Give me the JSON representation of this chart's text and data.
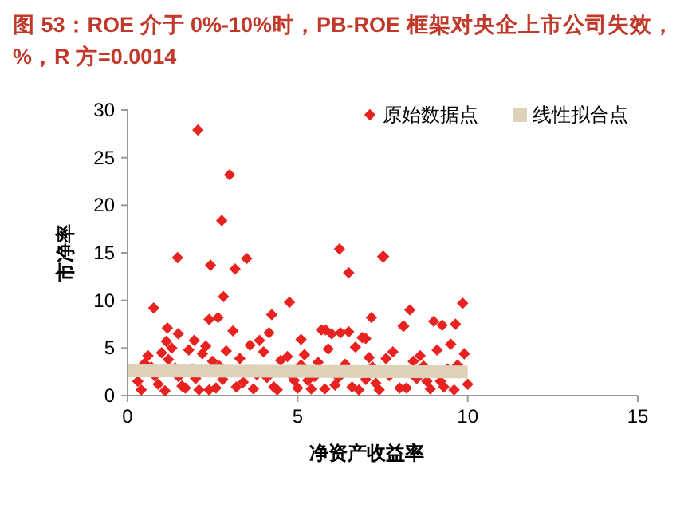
{
  "chart_data": {
    "type": "scatter",
    "title": "图 53：ROE 介于 0%-10%时，PB-ROE 框架对央企上市公司失效，%，R 方=0.0014",
    "xlabel": "净资产收益率",
    "ylabel": "市净率",
    "xlim": [
      0,
      15
    ],
    "xticks": [
      0,
      5,
      10,
      15
    ],
    "ylim": [
      0,
      30
    ],
    "yticks": [
      0,
      5,
      10,
      15,
      20,
      25,
      30
    ],
    "legend": "top",
    "series": [
      {
        "name": "原始数据点",
        "color": "#e8231f",
        "marker": "diamond",
        "x": [
          2.07,
          3.0,
          2.77,
          1.47,
          2.44,
          3.16,
          3.5,
          2.82,
          0.77,
          4.76,
          4.24,
          2.4,
          2.66,
          1.17,
          3.1,
          1.49,
          5.1,
          1.14,
          4.16,
          1.96,
          3.88,
          5.82,
          6.26,
          7.0,
          7.17,
          7.53,
          8.12,
          8.3,
          6.23,
          7.5,
          6.5,
          9.85,
          9.0,
          9.25,
          9.64,
          8.1,
          5.7,
          6.0,
          6.9,
          6.5,
          0.3,
          0.5,
          0.6,
          0.9,
          1.0,
          1.2,
          1.3,
          1.6,
          1.8,
          1.9,
          2.1,
          2.2,
          2.3,
          2.5,
          2.6,
          2.9,
          3.3,
          3.4,
          3.6,
          3.8,
          4.0,
          4.3,
          4.5,
          4.7,
          4.9,
          5.2,
          5.4,
          5.6,
          5.9,
          6.1,
          6.4,
          6.7,
          6.8,
          7.1,
          7.3,
          7.6,
          7.8,
          8.0,
          8.4,
          8.6,
          8.8,
          9.1,
          9.3,
          9.5,
          9.7,
          9.9,
          0.4,
          0.8,
          1.1,
          1.5,
          1.7,
          2.0,
          2.4,
          2.8,
          3.2,
          3.7,
          4.1,
          4.4,
          4.8,
          5.0,
          5.3,
          5.5,
          5.8,
          6.2,
          6.6,
          7.0,
          7.4,
          7.7,
          8.2,
          8.5,
          8.9,
          9.2,
          9.6,
          10.0,
          0.7,
          1.4,
          2.7,
          5.1,
          7.2,
          8.7,
          9.4
        ],
        "values": [
          27.9,
          23.2,
          18.4,
          14.5,
          13.7,
          13.3,
          14.4,
          10.4,
          9.2,
          9.8,
          8.5,
          8.0,
          8.2,
          7.1,
          6.8,
          6.5,
          5.9,
          5.7,
          6.6,
          5.8,
          5.8,
          6.9,
          6.6,
          6.0,
          8.2,
          14.6,
          7.3,
          9.0,
          15.4,
          14.6,
          12.9,
          9.7,
          7.8,
          7.4,
          7.5,
          7.3,
          6.9,
          6.5,
          6.1,
          6.7,
          1.5,
          3.4,
          4.2,
          1.2,
          4.5,
          3.8,
          5.0,
          1.0,
          4.8,
          2.8,
          0.6,
          4.4,
          5.2,
          3.6,
          0.8,
          4.7,
          3.9,
          1.4,
          5.3,
          2.2,
          4.6,
          0.9,
          3.7,
          4.1,
          1.6,
          4.3,
          0.7,
          3.5,
          4.9,
          1.1,
          3.3,
          5.1,
          0.6,
          4.0,
          1.3,
          3.9,
          4.6,
          0.8,
          3.6,
          4.2,
          1.5,
          4.8,
          0.9,
          5.4,
          3.2,
          4.4,
          0.6,
          2.1,
          0.5,
          2.0,
          0.8,
          1.8,
          0.6,
          1.7,
          0.9,
          0.7,
          1.9,
          0.6,
          2.2,
          0.8,
          1.6,
          2.0,
          0.7,
          1.9,
          0.9,
          1.7,
          0.6,
          2.1,
          0.8,
          1.8,
          0.7,
          1.5,
          0.6,
          1.2,
          3.0,
          2.9,
          3.1,
          3.2,
          3.0,
          3.1,
          2.8
        ]
      },
      {
        "name": "线性拟合点",
        "color": "#ddd2b9",
        "type": "line",
        "x": [
          0,
          10
        ],
        "values": [
          2.6,
          2.5
        ]
      }
    ]
  }
}
